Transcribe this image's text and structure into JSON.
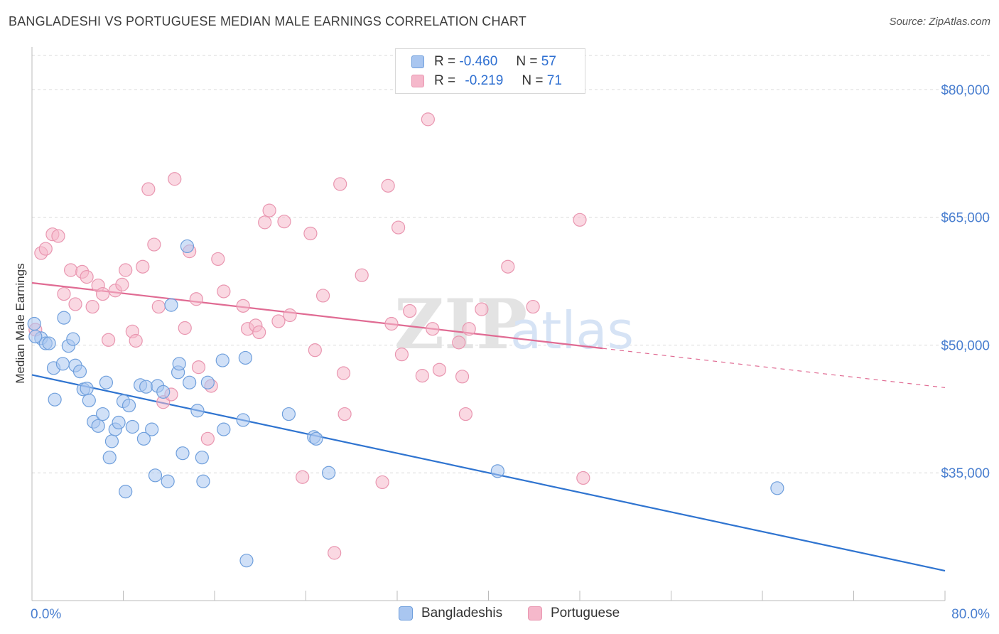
{
  "title": "BANGLADESHI VS PORTUGUESE MEDIAN MALE EARNINGS CORRELATION CHART",
  "source": "Source: ZipAtlas.com",
  "watermark": {
    "zip": "ZIP",
    "atlas": "atlas"
  },
  "legend": {
    "row1": {
      "r_label": "R =",
      "r_value": "-0.460",
      "n_label": "N =",
      "n_value": "57"
    },
    "row2": {
      "r_label": "R =",
      "r_value": "-0.219",
      "n_label": "N =",
      "n_value": "71"
    }
  },
  "bottom_legend": {
    "series1": "Bangladeshis",
    "series2": "Portuguese"
  },
  "colors": {
    "blue_fill": "#a9c6f0",
    "blue_stroke": "#6f9fdc",
    "blue_line": "#2f74d0",
    "pink_fill": "#f5b8cb",
    "pink_stroke": "#e996b0",
    "pink_line": "#e06b93",
    "axis_text": "#4a7fd0",
    "grid": "#d9d9d9"
  },
  "chart_data": {
    "type": "scatter",
    "title": "BANGLADESHI VS PORTUGUESE MEDIAN MALE EARNINGS CORRELATION CHART",
    "xlabel": "",
    "ylabel": "Median Male Earnings",
    "xlim": [
      0,
      80
    ],
    "ylim": [
      20000,
      84000
    ],
    "x_tick_labels": [
      "0.0%",
      "80.0%"
    ],
    "y_ticks": [
      35000,
      50000,
      65000,
      80000
    ],
    "y_tick_labels": [
      "$35,000",
      "$50,000",
      "$65,000",
      "$80,000"
    ],
    "series": [
      {
        "name": "Bangladeshis",
        "R": -0.46,
        "N": 57,
        "trend": {
          "x0": 0,
          "y0": 46500,
          "x1": 80,
          "y1": 23500,
          "x_solid_end": 80
        },
        "points": [
          [
            0.2,
            52500
          ],
          [
            0.8,
            50800
          ],
          [
            1.2,
            50200
          ],
          [
            1.5,
            50200
          ],
          [
            1.9,
            47300
          ],
          [
            2.0,
            43600
          ],
          [
            2.7,
            47800
          ],
          [
            2.8,
            53200
          ],
          [
            3.2,
            49900
          ],
          [
            3.6,
            50700
          ],
          [
            3.8,
            47600
          ],
          [
            4.2,
            46900
          ],
          [
            4.5,
            44800
          ],
          [
            4.8,
            44900
          ],
          [
            5.0,
            43500
          ],
          [
            5.4,
            41000
          ],
          [
            5.8,
            40500
          ],
          [
            6.2,
            41900
          ],
          [
            6.5,
            45600
          ],
          [
            6.8,
            36800
          ],
          [
            7.0,
            38700
          ],
          [
            7.3,
            40100
          ],
          [
            7.6,
            40900
          ],
          [
            8.0,
            43400
          ],
          [
            8.2,
            32800
          ],
          [
            8.5,
            42900
          ],
          [
            8.8,
            40400
          ],
          [
            9.5,
            45300
          ],
          [
            9.8,
            39000
          ],
          [
            10.0,
            45100
          ],
          [
            10.5,
            40100
          ],
          [
            10.8,
            34700
          ],
          [
            11.0,
            45200
          ],
          [
            11.5,
            44500
          ],
          [
            11.9,
            34000
          ],
          [
            12.2,
            54700
          ],
          [
            12.8,
            46800
          ],
          [
            12.9,
            47800
          ],
          [
            13.2,
            37300
          ],
          [
            13.6,
            61600
          ],
          [
            13.8,
            45600
          ],
          [
            14.5,
            42300
          ],
          [
            14.9,
            36800
          ],
          [
            15.0,
            34000
          ],
          [
            15.4,
            45600
          ],
          [
            16.7,
            48200
          ],
          [
            16.8,
            40100
          ],
          [
            18.5,
            41200
          ],
          [
            18.7,
            48500
          ],
          [
            18.8,
            24700
          ],
          [
            22.5,
            41900
          ],
          [
            24.7,
            39200
          ],
          [
            24.9,
            39000
          ],
          [
            26.0,
            35000
          ],
          [
            40.8,
            35200
          ],
          [
            65.3,
            33200
          ],
          [
            0.3,
            51000
          ]
        ]
      },
      {
        "name": "Portuguese",
        "R": -0.219,
        "N": 71,
        "trend": {
          "x0": 0,
          "y0": 57300,
          "x1": 80,
          "y1": 45000,
          "x_solid_end": 50
        },
        "points": [
          [
            0.3,
            51800
          ],
          [
            0.8,
            60800
          ],
          [
            1.2,
            61300
          ],
          [
            1.8,
            63000
          ],
          [
            2.3,
            62800
          ],
          [
            2.8,
            56000
          ],
          [
            3.4,
            58800
          ],
          [
            3.8,
            54800
          ],
          [
            4.4,
            58600
          ],
          [
            4.8,
            58000
          ],
          [
            5.3,
            54500
          ],
          [
            5.8,
            57000
          ],
          [
            6.2,
            56000
          ],
          [
            6.7,
            50600
          ],
          [
            7.3,
            56400
          ],
          [
            7.9,
            57100
          ],
          [
            8.2,
            58800
          ],
          [
            8.8,
            51600
          ],
          [
            9.1,
            50500
          ],
          [
            9.7,
            59200
          ],
          [
            10.2,
            68300
          ],
          [
            10.7,
            61800
          ],
          [
            11.1,
            54500
          ],
          [
            11.5,
            43300
          ],
          [
            12.2,
            44200
          ],
          [
            12.5,
            69500
          ],
          [
            13.4,
            52000
          ],
          [
            13.8,
            61000
          ],
          [
            14.4,
            55400
          ],
          [
            14.6,
            47400
          ],
          [
            15.4,
            39000
          ],
          [
            15.7,
            45200
          ],
          [
            16.3,
            60100
          ],
          [
            16.8,
            56300
          ],
          [
            18.5,
            54600
          ],
          [
            18.9,
            51900
          ],
          [
            19.6,
            52300
          ],
          [
            19.9,
            51500
          ],
          [
            20.4,
            64400
          ],
          [
            20.8,
            65800
          ],
          [
            21.6,
            52800
          ],
          [
            22.1,
            64500
          ],
          [
            22.6,
            53500
          ],
          [
            23.7,
            34500
          ],
          [
            24.4,
            63100
          ],
          [
            24.8,
            49400
          ],
          [
            25.5,
            55800
          ],
          [
            26.5,
            25600
          ],
          [
            27.0,
            68900
          ],
          [
            27.3,
            46700
          ],
          [
            27.4,
            41900
          ],
          [
            28.9,
            58200
          ],
          [
            30.7,
            33900
          ],
          [
            31.2,
            68700
          ],
          [
            31.5,
            52500
          ],
          [
            32.1,
            63800
          ],
          [
            32.4,
            48900
          ],
          [
            33.1,
            54000
          ],
          [
            34.2,
            46400
          ],
          [
            34.7,
            76500
          ],
          [
            35.1,
            51900
          ],
          [
            35.7,
            47100
          ],
          [
            37.4,
            50300
          ],
          [
            37.7,
            46300
          ],
          [
            38.0,
            41900
          ],
          [
            38.3,
            51900
          ],
          [
            39.4,
            54200
          ],
          [
            41.7,
            59200
          ],
          [
            43.9,
            54500
          ],
          [
            48.0,
            64700
          ],
          [
            48.3,
            34400
          ]
        ]
      }
    ]
  }
}
